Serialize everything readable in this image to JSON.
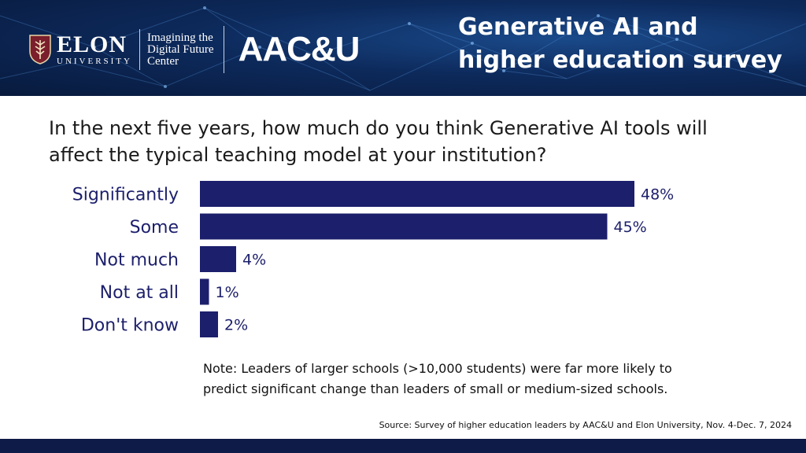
{
  "header": {
    "org1_name": "ELON",
    "org1_sub": "UNIVERSITY",
    "org2_lines": [
      "Imagining the",
      "Digital Future",
      "Center"
    ],
    "org3_name": "AAC&U",
    "title_lines": [
      "Generative AI and",
      "higher education survey"
    ]
  },
  "question_lines": [
    "In the next five years, how much do you think Generative AI tools will",
    "affect the typical teaching model at your institution?"
  ],
  "chart_data": {
    "type": "bar",
    "orientation": "horizontal",
    "categories": [
      "Significantly",
      "Some",
      "Not much",
      "Not at all",
      "Don't know"
    ],
    "values": [
      48,
      45,
      4,
      1,
      2
    ],
    "value_labels": [
      "48%",
      "45%",
      "4%",
      "1%",
      "2%"
    ],
    "unit": "%",
    "xlim": [
      0,
      50
    ],
    "bar_color": "#1c1f6b",
    "grid": false,
    "legend": "none"
  },
  "note_lines": [
    "Note: Leaders of larger schools (>10,000 students) were far more likely to",
    "predict significant change than leaders of small or medium-sized schools."
  ],
  "source": "Source: Survey of higher education leaders by AAC&U and Elon University, Nov. 4-Dec. 7, 2024",
  "colors": {
    "banner": "#0d2a5c",
    "footer": "#0e1a47",
    "bar": "#1c1f6b",
    "label_text": "#1c1f6b"
  }
}
